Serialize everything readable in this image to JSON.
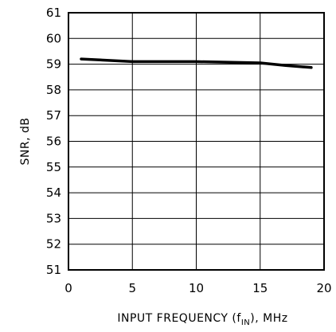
{
  "chart_data": {
    "type": "line",
    "xlabel": "INPUT FREQUENCY (fIN), MHz",
    "xlabel_parts": {
      "before": "INPUT FREQUENCY (f",
      "subscript": "IN",
      "after": "), MHz"
    },
    "ylabel": "SNR, dB",
    "xlim": [
      0,
      20
    ],
    "ylim": [
      51,
      61
    ],
    "x_ticks": [
      0,
      5,
      10,
      15,
      20
    ],
    "y_ticks": [
      51,
      52,
      53,
      54,
      55,
      56,
      57,
      58,
      59,
      60,
      61
    ],
    "grid": true,
    "series": [
      {
        "x": [
          1,
          5,
          10,
          15,
          17,
          19
        ],
        "y": [
          59.2,
          59.1,
          59.1,
          59.05,
          58.95,
          58.87
        ]
      }
    ]
  }
}
